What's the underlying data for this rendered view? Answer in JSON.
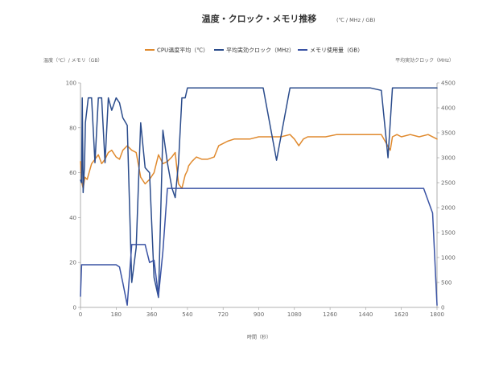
{
  "chart_data": {
    "type": "line",
    "title": "温度・クロック・メモリ推移",
    "subtitle": "(℃ / MHz / GB)",
    "xlabel": "時間（秒）",
    "ylabel_left": "温度（℃）/ メモリ（GB）",
    "ylabel_right": "平均実効クロック（MHz）",
    "xlim": [
      0,
      1600
    ],
    "ylim_left": [
      0,
      100
    ],
    "ylim_right": [
      0,
      4500
    ],
    "x_ticks": [
      0,
      180,
      360,
      540,
      720,
      900,
      1080,
      1260,
      1440,
      1620,
      1800
    ],
    "y_left_ticks": [
      0,
      20,
      40,
      60,
      80,
      100
    ],
    "y_right_ticks": [
      0,
      500,
      1000,
      1500,
      2000,
      2500,
      3000,
      3500,
      4000,
      4500
    ],
    "x_axis_scale_note": "tick labels run to 1800 while the data spans 0–1600; the ticks are drawn evenly across the plot",
    "legend_position": "top-center",
    "grid": false,
    "series": [
      {
        "name": "CPU温度平均（℃）",
        "color": "#E08A2E",
        "axis": "left",
        "x": [
          0,
          5,
          12,
          20,
          30,
          50,
          65,
          80,
          95,
          110,
          125,
          140,
          160,
          175,
          190,
          210,
          230,
          250,
          270,
          290,
          310,
          330,
          350,
          370,
          390,
          410,
          425,
          440,
          455,
          470,
          480,
          485,
          500,
          520,
          545,
          570,
          600,
          620,
          640,
          660,
          690,
          720,
          760,
          800,
          850,
          900,
          940,
          960,
          980,
          1000,
          1020,
          1060,
          1100,
          1150,
          1200,
          1260,
          1300,
          1350,
          1390,
          1400,
          1420,
          1440,
          1480,
          1520,
          1560,
          1600
        ],
        "y": [
          65,
          56,
          53,
          58,
          57,
          64,
          66,
          68,
          64,
          66,
          69,
          70,
          67,
          66,
          70,
          72,
          70,
          69,
          58,
          55,
          57,
          60,
          68,
          64,
          65,
          67,
          69,
          55,
          53,
          59,
          61,
          63,
          65,
          67,
          66,
          66,
          67,
          72,
          73,
          74,
          75,
          75,
          75,
          76,
          76,
          76,
          77,
          75,
          72,
          75,
          76,
          76,
          76,
          77,
          77,
          77,
          77,
          77,
          70,
          76,
          77,
          76,
          77,
          76,
          77,
          75
        ]
      },
      {
        "name": "平均実効クロック（MHz）",
        "color": "#2B4C8C",
        "axis": "right",
        "x": [
          0,
          5,
          8,
          12,
          18,
          22,
          35,
          50,
          65,
          80,
          95,
          110,
          125,
          140,
          160,
          175,
          190,
          210,
          230,
          250,
          270,
          290,
          310,
          330,
          350,
          370,
          390,
          410,
          425,
          440,
          455,
          470,
          480,
          485,
          500,
          520,
          545,
          570,
          590,
          610,
          630,
          660,
          700,
          760,
          820,
          880,
          940,
          970,
          990,
          1000,
          1020,
          1060,
          1100,
          1200,
          1260,
          1300,
          1350,
          1380,
          1400,
          1420,
          1450,
          1520,
          1560,
          1580,
          1600
        ],
        "y": [
          2550,
          2500,
          4200,
          2300,
          2850,
          3700,
          4200,
          4200,
          2900,
          4200,
          4200,
          2900,
          4200,
          3950,
          4200,
          4100,
          3800,
          3650,
          500,
          1200,
          3700,
          2800,
          2700,
          600,
          200,
          3550,
          2900,
          2400,
          2200,
          2900,
          4200,
          4200,
          4400,
          4400,
          4400,
          4400,
          4400,
          4400,
          4400,
          4400,
          4400,
          4400,
          4400,
          4400,
          4400,
          2950,
          4400,
          4400,
          4400,
          4400,
          4400,
          4400,
          4400,
          4400,
          4400,
          4400,
          4350,
          3000,
          4400,
          4400,
          4400,
          4400,
          4400,
          4400,
          4400
        ]
      },
      {
        "name": "メモリ使用量（GB）",
        "color": "#3A53A4",
        "axis": "left",
        "x": [
          0,
          5,
          12,
          20,
          30,
          50,
          65,
          80,
          95,
          110,
          125,
          140,
          160,
          175,
          190,
          210,
          230,
          250,
          270,
          290,
          310,
          330,
          350,
          370,
          390,
          410,
          425,
          440,
          455,
          470,
          480,
          485,
          500,
          520,
          545,
          570,
          600,
          640,
          700,
          760,
          820,
          880,
          940,
          1000,
          1060,
          1120,
          1180,
          1240,
          1300,
          1360,
          1420,
          1480,
          1540,
          1580,
          1600
        ],
        "y": [
          5,
          19,
          19,
          19,
          19,
          19,
          19,
          19,
          19,
          19,
          19,
          19,
          19,
          18,
          11,
          1,
          28,
          28,
          28,
          28,
          20,
          21,
          5,
          25,
          53,
          53,
          53,
          53,
          53,
          53,
          53,
          53,
          53,
          53,
          53,
          53,
          53,
          53,
          53,
          53,
          53,
          53,
          53,
          53,
          53,
          53,
          53,
          53,
          53,
          53,
          53,
          53,
          53,
          42,
          1
        ]
      }
    ]
  }
}
